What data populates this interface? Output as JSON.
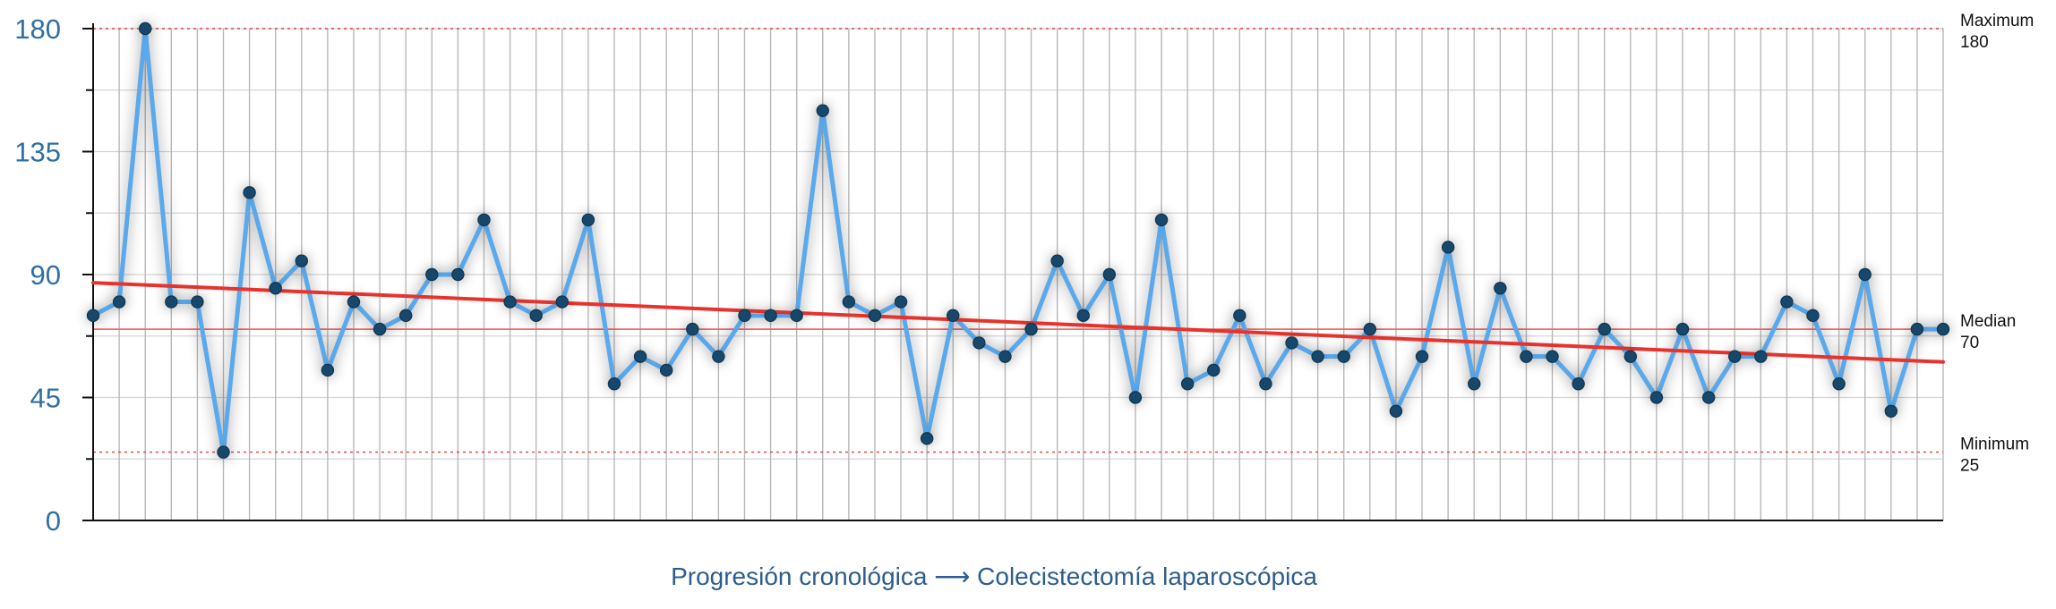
{
  "chart_data": {
    "type": "line",
    "title": "",
    "xlabel": "Progresión cronológica ⟶ Colecistectomía laparoscópica",
    "ylabel": "",
    "ylim": [
      0,
      180
    ],
    "yticks": [
      0,
      45,
      90,
      135,
      180
    ],
    "minor_ytick_step": 22.5,
    "grid": true,
    "legend": "none",
    "series": [
      {
        "values": [
          75,
          80,
          180,
          80,
          80,
          25,
          120,
          85,
          95,
          55,
          80,
          70,
          75,
          90,
          90,
          110,
          80,
          75,
          80,
          110,
          50,
          60,
          55,
          70,
          60,
          75,
          75,
          75,
          150,
          80,
          75,
          80,
          30,
          75,
          65,
          60,
          70,
          95,
          75,
          90,
          45,
          110,
          50,
          55,
          75,
          50,
          65,
          60,
          60,
          70,
          40,
          60,
          100,
          50,
          85,
          60,
          60,
          50,
          70,
          60,
          45,
          70,
          45,
          60,
          60,
          80,
          75,
          50,
          90,
          40,
          70,
          70
        ]
      }
    ],
    "trendline": {
      "start": 87,
      "end": 58
    },
    "reference_lines": [
      {
        "label": "Maximum",
        "value": 180
      },
      {
        "label": "Median",
        "value": 70
      },
      {
        "label": "Minimum",
        "value": 25
      }
    ],
    "colors": {
      "series": "#5aa9ec",
      "marker": "#17486b",
      "trendline": "#e8332d",
      "median_line": "#ef6d67",
      "minmax_line": "#e0403a",
      "vertical_grid": "#b8b8b8",
      "horizontal_grid": "#d4d4d4",
      "tick_label": "#2f6fa3",
      "axis_title": "#2c5d8c",
      "ref_text": "#111111"
    }
  }
}
